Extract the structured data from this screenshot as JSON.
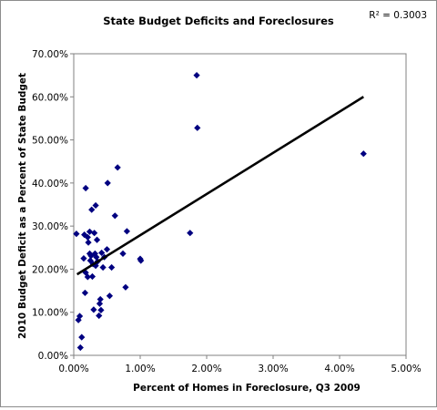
{
  "chart_data": {
    "type": "scatter",
    "title": "State Budget Deficits and Foreclosures",
    "xlabel": "Percent of Homes in Foreclosure, Q3 2009",
    "ylabel": "2010 Budget Deficit as a Percent of State Budget",
    "xlim": [
      0,
      0.05
    ],
    "ylim": [
      0,
      0.7
    ],
    "x_ticks": [
      "0.00%",
      "1.00%",
      "2.00%",
      "3.00%",
      "4.00%",
      "5.00%"
    ],
    "y_ticks": [
      "0.00%",
      "10.00%",
      "20.00%",
      "30.00%",
      "40.00%",
      "50.00%",
      "60.00%",
      "70.00%"
    ],
    "grid": false,
    "marker_color": "#000080",
    "trendline_color": "#000000",
    "annotation": {
      "text": "R² = 0.3003",
      "r_squared": 0.3003
    },
    "trendline": {
      "x": [
        0.0005,
        0.0436
      ],
      "y": [
        0.188,
        0.6
      ]
    },
    "series": [
      {
        "points": [
          [
            0.0004,
            0.282
          ],
          [
            0.0007,
            0.082
          ],
          [
            0.0009,
            0.091
          ],
          [
            0.001,
            0.018
          ],
          [
            0.0012,
            0.042
          ],
          [
            0.0015,
            0.225
          ],
          [
            0.0016,
            0.28
          ],
          [
            0.0017,
            0.145
          ],
          [
            0.0018,
            0.388
          ],
          [
            0.0018,
            0.192
          ],
          [
            0.0021,
            0.182
          ],
          [
            0.0021,
            0.274
          ],
          [
            0.0022,
            0.262
          ],
          [
            0.0024,
            0.236
          ],
          [
            0.0024,
            0.287
          ],
          [
            0.0025,
            0.22
          ],
          [
            0.0026,
            0.231
          ],
          [
            0.0027,
            0.338
          ],
          [
            0.0028,
            0.183
          ],
          [
            0.0029,
            0.212
          ],
          [
            0.003,
            0.106
          ],
          [
            0.0031,
            0.284
          ],
          [
            0.0032,
            0.236
          ],
          [
            0.0033,
            0.348
          ],
          [
            0.0033,
            0.208
          ],
          [
            0.0034,
            0.228
          ],
          [
            0.0035,
            0.268
          ],
          [
            0.0036,
            0.218
          ],
          [
            0.0038,
            0.092
          ],
          [
            0.0039,
            0.12
          ],
          [
            0.004,
            0.13
          ],
          [
            0.0041,
            0.105
          ],
          [
            0.0042,
            0.238
          ],
          [
            0.0044,
            0.204
          ],
          [
            0.0046,
            0.228
          ],
          [
            0.005,
            0.246
          ],
          [
            0.0051,
            0.4
          ],
          [
            0.0054,
            0.138
          ],
          [
            0.0057,
            0.204
          ],
          [
            0.0062,
            0.324
          ],
          [
            0.0066,
            0.436
          ],
          [
            0.0074,
            0.236
          ],
          [
            0.0078,
            0.158
          ],
          [
            0.008,
            0.288
          ],
          [
            0.01,
            0.224
          ],
          [
            0.0101,
            0.22
          ],
          [
            0.0175,
            0.284
          ],
          [
            0.0185,
            0.65
          ],
          [
            0.0186,
            0.528
          ],
          [
            0.0436,
            0.468
          ]
        ]
      }
    ]
  }
}
